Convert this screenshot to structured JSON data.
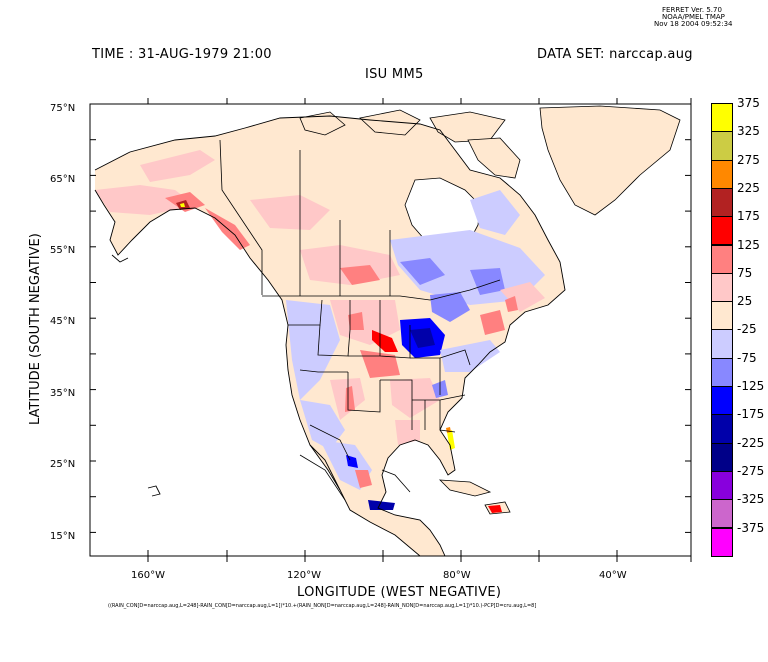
{
  "header": {
    "ferret_line1": "FERRET Ver. 5.70",
    "ferret_line2": "NOAA/PMEL TMAP",
    "ferret_line3": "Nov 18 2004 09:52:34",
    "time": "TIME : 31-AUG-1979 21:00",
    "dataset": "DATA SET: narccap.aug",
    "model": "ISU MM5"
  },
  "axes": {
    "x_title": "LONGITUDE (WEST NEGATIVE)",
    "y_title": "LATITUDE (SOUTH NEGATIVE)",
    "lat_ticks": [
      "75°N",
      "65°N",
      "55°N",
      "45°N",
      "35°N",
      "25°N",
      "15°N"
    ],
    "lon_ticks": [
      "160°W",
      "120°W",
      "80°W",
      "40°W"
    ],
    "lat_range": [
      12,
      76
    ],
    "lon_range": [
      -175,
      -25
    ]
  },
  "footer": {
    "expression": "((RAIN_CON[D=narccap.aug,L=248]-RAIN_CON[D=narccap.aug,L=1])*10.+(RAIN_NON[D=narccap.aug,L=248]-RAIN_NON[D=narccap.aug,L=1])*10.)-PCP[D=cru.aug,L=8]"
  },
  "colorbar": {
    "levels": [
      {
        "label": "375",
        "color": "#ffff00"
      },
      {
        "label": "325",
        "color": "#cccc44"
      },
      {
        "label": "275",
        "color": "#ff8800"
      },
      {
        "label": "225",
        "color": "#b22222"
      },
      {
        "label": "175",
        "color": "#ff0000"
      },
      {
        "label": "125",
        "color": "#ff8080"
      },
      {
        "label": "75",
        "color": "#ffc8c8"
      },
      {
        "label": "25",
        "color": "#ffe8d0"
      },
      {
        "label": "-25",
        "color": "#ccccff"
      },
      {
        "label": "-75",
        "color": "#8888ff"
      },
      {
        "label": "-125",
        "color": "#0000ff"
      },
      {
        "label": "-175",
        "color": "#0000aa"
      },
      {
        "label": "-225",
        "color": "#000088"
      },
      {
        "label": "-275",
        "color": "#8800dd"
      },
      {
        "label": "-325",
        "color": "#cc66cc"
      },
      {
        "label": "-375",
        "color": "#ff00ff"
      }
    ]
  }
}
